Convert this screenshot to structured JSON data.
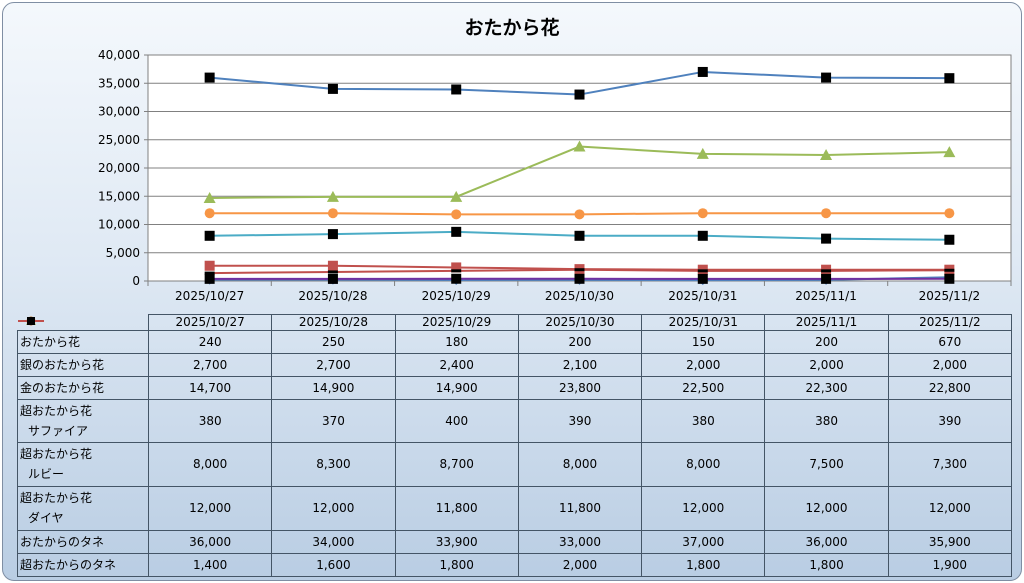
{
  "chart_data": {
    "type": "line",
    "title": "おたから花",
    "categories": [
      "2025/10/27",
      "2025/10/28",
      "2025/10/29",
      "2025/10/30",
      "2025/10/31",
      "2025/11/1",
      "2025/11/2"
    ],
    "ylim": [
      0,
      40000
    ],
    "yticks": [
      "0",
      "5,000",
      "10,000",
      "15,000",
      "20,000",
      "25,000",
      "30,000",
      "35,000",
      "40,000"
    ],
    "grid": true,
    "legend": "data-table",
    "series": [
      {
        "name": "おたから花",
        "name_lines": [
          "おたから花"
        ],
        "color": "#4f81bd",
        "marker": "diamond",
        "values": [
          240,
          250,
          180,
          200,
          150,
          200,
          670
        ],
        "display": [
          "240",
          "250",
          "180",
          "200",
          "150",
          "200",
          "670"
        ]
      },
      {
        "name": "銀のおたから花",
        "name_lines": [
          "銀のおたから花"
        ],
        "color": "#c0504d",
        "marker": "square",
        "values": [
          2700,
          2700,
          2400,
          2100,
          2000,
          2000,
          2000
        ],
        "display": [
          "2,700",
          "2,700",
          "2,400",
          "2,100",
          "2,000",
          "2,000",
          "2,000"
        ]
      },
      {
        "name": "金のおたから花",
        "name_lines": [
          "金のおたから花"
        ],
        "color": "#9bbb59",
        "marker": "triangle",
        "values": [
          14700,
          14900,
          14900,
          23800,
          22500,
          22300,
          22800
        ],
        "display": [
          "14,700",
          "14,900",
          "14,900",
          "23,800",
          "22,500",
          "22,300",
          "22,800"
        ]
      },
      {
        "name": "超おたから花サファイア",
        "name_lines": [
          "超おたから花",
          "サファイア"
        ],
        "color": "#7030a0",
        "marker": "blacksquare",
        "values": [
          380,
          370,
          400,
          390,
          380,
          380,
          390
        ],
        "display": [
          "380",
          "370",
          "400",
          "390",
          "380",
          "380",
          "390"
        ]
      },
      {
        "name": "超おたから花ルビー",
        "name_lines": [
          "超おたから花",
          "ルビー"
        ],
        "color": "#4bacc6",
        "marker": "blacksquare",
        "values": [
          8000,
          8300,
          8700,
          8000,
          8000,
          7500,
          7300
        ],
        "display": [
          "8,000",
          "8,300",
          "8,700",
          "8,000",
          "8,000",
          "7,500",
          "7,300"
        ]
      },
      {
        "name": "超おたから花ダイヤ",
        "name_lines": [
          "超おたから花",
          "ダイヤ"
        ],
        "color": "#f79646",
        "marker": "circle",
        "values": [
          12000,
          12000,
          11800,
          11800,
          12000,
          12000,
          12000
        ],
        "display": [
          "12,000",
          "12,000",
          "11,800",
          "11,800",
          "12,000",
          "12,000",
          "12,000"
        ]
      },
      {
        "name": "おたからのタネ",
        "name_lines": [
          "おたからのタネ"
        ],
        "color": "#4f81bd",
        "marker": "blacksquare",
        "values": [
          36000,
          34000,
          33900,
          33000,
          37000,
          36000,
          35900
        ],
        "display": [
          "36,000",
          "34,000",
          "33,900",
          "33,000",
          "37,000",
          "36,000",
          "35,900"
        ]
      },
      {
        "name": "超おたからのタネ",
        "name_lines": [
          "超おたからのタネ"
        ],
        "color": "#c0504d",
        "marker": "dash",
        "values": [
          1400,
          1600,
          1800,
          2000,
          1800,
          1800,
          1900
        ],
        "display": [
          "1,400",
          "1,600",
          "1,800",
          "2,000",
          "1,800",
          "1,800",
          "1,900"
        ]
      }
    ]
  }
}
